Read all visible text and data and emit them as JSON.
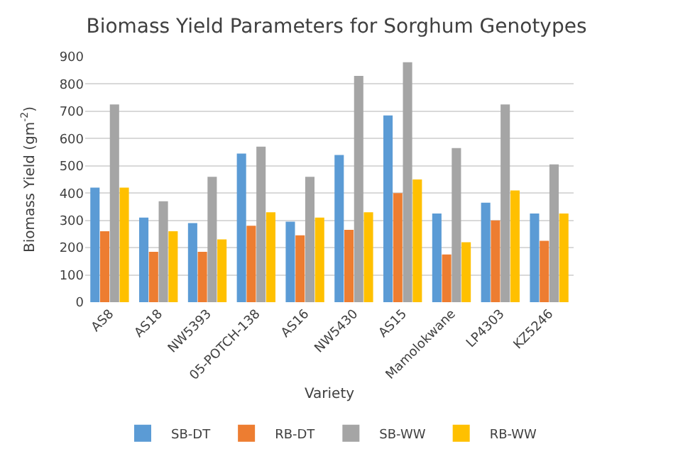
{
  "chart_data": {
    "type": "bar",
    "title": "Biomass Yield Parameters for Sorghum Genotypes",
    "xlabel": "Variety",
    "ylabel": "Biomass Yield (gm$^{-2}$)",
    "categories": [
      "AS8",
      "AS18",
      "NW5393",
      "05-POTCH-138",
      "AS16",
      "NW5430",
      "AS15",
      "Mamolokwane",
      "LP4303",
      "KZ5246"
    ],
    "series": [
      {
        "name": "SB-DT",
        "color": "#5b9bd5",
        "values": [
          420,
          310,
          290,
          545,
          295,
          540,
          685,
          325,
          365,
          325
        ]
      },
      {
        "name": "RB-DT",
        "color": "#ed7d31",
        "values": [
          260,
          185,
          185,
          280,
          245,
          265,
          400,
          175,
          300,
          225
        ]
      },
      {
        "name": "SB-WW",
        "color": "#a5a5a5",
        "values": [
          725,
          370,
          460,
          570,
          460,
          830,
          880,
          565,
          725,
          505
        ]
      },
      {
        "name": "RB-WW",
        "color": "#ffc000",
        "values": [
          420,
          260,
          230,
          330,
          310,
          330,
          450,
          220,
          410,
          325
        ]
      }
    ],
    "ylim": [
      0,
      900
    ],
    "yticks": [
      0,
      100,
      200,
      300,
      400,
      500,
      600,
      700,
      800,
      900
    ],
    "grid": "y",
    "legend": "bottom"
  }
}
